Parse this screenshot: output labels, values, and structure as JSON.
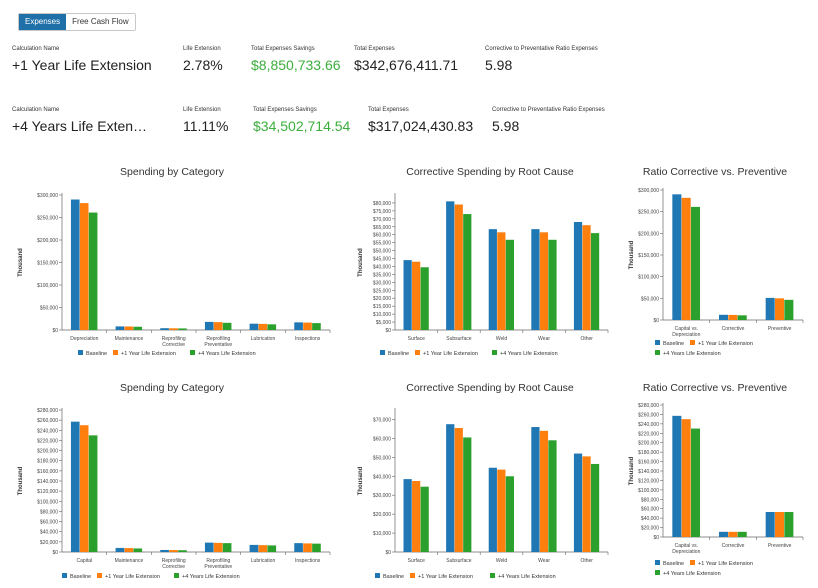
{
  "tabs": [
    {
      "label": "Expenses"
    },
    {
      "label": "Free Cash Flow"
    }
  ],
  "rows": [
    {
      "calc_label": "Calculation Name",
      "calc_value": "+1 Year Life Extension",
      "life_label": "Life Extension",
      "life_value": "2.78%",
      "savings_label": "Total Expenses Savings",
      "savings_value": "$8,850,733.66",
      "total_label": "Total Expenses",
      "total_value": "$342,676,411.71",
      "ratio_label": "Corrective to Preventative Ratio Expenses",
      "ratio_value": "5.98"
    },
    {
      "calc_label": "Calculation Name",
      "calc_value": "+4 Years Life Exten…",
      "life_label": "Life Extension",
      "life_value": "11.11%",
      "savings_label": "Total Expenses Savings",
      "savings_value": "$34,502,714.54",
      "total_label": "Total Expenses",
      "total_value": "$317,024,430.83",
      "ratio_label": "Corrective to Preventative Ratio Expenses",
      "ratio_value": "5.98"
    }
  ],
  "colors": [
    "#1f77b4",
    "#ff7f0e",
    "#2ca02c"
  ],
  "chart_data": [
    {
      "type": "bar",
      "title": "Spending by Category",
      "ylabel": "Thousand",
      "ylim": [
        0,
        300000
      ],
      "yticks": [
        0,
        50000,
        100000,
        150000,
        200000,
        250000,
        300000
      ],
      "categories": [
        "Depreciation",
        "Maintenance",
        "Reprofiling|Corrective",
        "Reprofiling|Preventative",
        "Lubrication",
        "Inspections"
      ],
      "series": [
        {
          "name": "Baseline",
          "values": [
            290000,
            8000,
            4000,
            18000,
            14000,
            17000
          ]
        },
        {
          "name": "+1 Year Life Extension",
          "values": [
            282000,
            7800,
            3800,
            17500,
            13600,
            16500
          ]
        },
        {
          "name": "+4 Years Life Extension",
          "values": [
            261000,
            7200,
            3500,
            16000,
            12600,
            15300
          ]
        }
      ],
      "legend": "bottom"
    },
    {
      "type": "bar",
      "title": "Corrective Spending by Root Cause",
      "ylabel": "Thousand",
      "ylim": [
        0,
        85000
      ],
      "yticks": [
        0,
        5000,
        10000,
        15000,
        20000,
        25000,
        30000,
        35000,
        40000,
        45000,
        50000,
        55000,
        60000,
        65000,
        70000,
        75000,
        80000
      ],
      "categories": [
        "Surface",
        "Subsurface",
        "Weld",
        "Wear",
        "Other"
      ],
      "series": [
        {
          "name": "Baseline",
          "values": [
            44000,
            81000,
            63500,
            63500,
            68000
          ]
        },
        {
          "name": "+1 Year Life Extension",
          "values": [
            43000,
            79000,
            61500,
            61500,
            66000
          ]
        },
        {
          "name": "+4 Years Life Extension",
          "values": [
            39500,
            73000,
            56800,
            56800,
            61000
          ]
        }
      ],
      "legend": "bottom"
    },
    {
      "type": "bar",
      "title": "Ratio Corrective vs. Preventive",
      "ylabel": "Thousand",
      "ylim": [
        0,
        300000
      ],
      "yticks": [
        0,
        50000,
        100000,
        150000,
        200000,
        250000,
        300000
      ],
      "categories": [
        "Capital vs.|Depreciation",
        "Corrective",
        "Preventive"
      ],
      "series": [
        {
          "name": "Baseline",
          "values": [
            290000,
            12000,
            51000
          ]
        },
        {
          "name": "+1 Year Life Extension",
          "values": [
            282000,
            11700,
            50000
          ]
        },
        {
          "name": "+4 Years Life Extension",
          "values": [
            261000,
            10800,
            46500
          ]
        }
      ],
      "legend": "bottom"
    },
    {
      "type": "bar",
      "title": "Spending by Category",
      "ylabel": "Thousand",
      "ylim": [
        0,
        280000
      ],
      "yticks": [
        0,
        20000,
        40000,
        60000,
        80000,
        100000,
        120000,
        140000,
        160000,
        180000,
        200000,
        220000,
        240000,
        260000,
        280000
      ],
      "categories": [
        "Capital",
        "Maintenance",
        "Reprofiling|Corrective",
        "Reprofiling|Preventative",
        "Lubrication",
        "Inspections"
      ],
      "series": [
        {
          "name": "Baseline",
          "values": [
            257000,
            8000,
            4000,
            18500,
            14000,
            17500
          ]
        },
        {
          "name": "+1 Year Life Extension",
          "values": [
            250000,
            7700,
            3800,
            18000,
            13500,
            17000
          ]
        },
        {
          "name": "+4 Years Life Extension",
          "values": [
            230000,
            7000,
            3500,
            17500,
            13000,
            16500
          ]
        }
      ],
      "legend": "bottom"
    },
    {
      "type": "bar",
      "title": "Corrective Spending by Root Cause",
      "ylabel": "Thousand",
      "ylim": [
        0,
        75000
      ],
      "yticks": [
        0,
        10000,
        20000,
        30000,
        40000,
        50000,
        60000,
        70000
      ],
      "categories": [
        "Surface",
        "Subsurface",
        "Weld",
        "Wear",
        "Other"
      ],
      "series": [
        {
          "name": "Baseline",
          "values": [
            38500,
            67500,
            44500,
            66000,
            52000
          ]
        },
        {
          "name": "+1 Year Life Extension",
          "values": [
            37500,
            65500,
            43500,
            64000,
            50500
          ]
        },
        {
          "name": "+4 Years Life Extension",
          "values": [
            34500,
            60500,
            40000,
            59000,
            46500
          ]
        }
      ],
      "legend": "bottom"
    },
    {
      "type": "bar",
      "title": "Ratio Corrective vs. Preventive",
      "ylabel": "Thousand",
      "ylim": [
        0,
        280000
      ],
      "yticks": [
        0,
        20000,
        40000,
        60000,
        80000,
        100000,
        120000,
        140000,
        160000,
        180000,
        200000,
        220000,
        240000,
        260000,
        280000
      ],
      "categories": [
        "Capital vs.|Depreciation",
        "Corrective",
        "Preventive"
      ],
      "series": [
        {
          "name": "Baseline",
          "values": [
            257000,
            11000,
            53000
          ]
        },
        {
          "name": "+1 Year Life Extension",
          "values": [
            250000,
            11000,
            53000
          ]
        },
        {
          "name": "+4 Years Life Extension",
          "values": [
            230000,
            11000,
            53000
          ]
        }
      ],
      "legend": "bottom"
    }
  ]
}
